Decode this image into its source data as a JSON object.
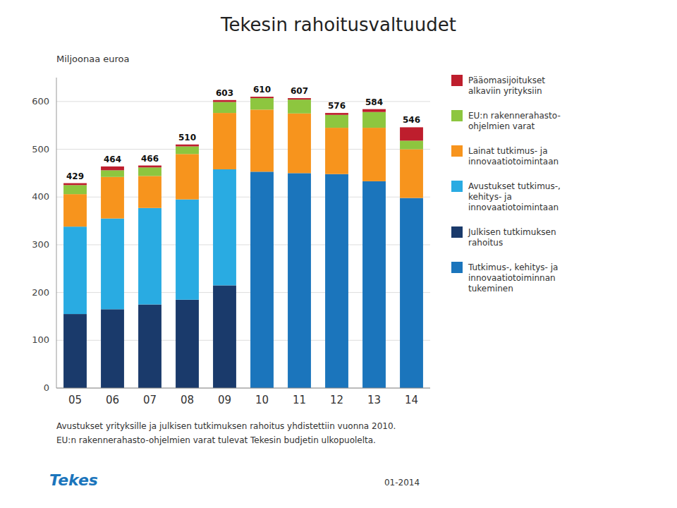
{
  "chart_data": {
    "type": "bar",
    "stacked": true,
    "title": "Tekesin rahoitusvaltuudet",
    "y_label": "Miljoonaa euroa",
    "categories": [
      "05",
      "06",
      "07",
      "08",
      "09",
      "10",
      "11",
      "12",
      "13",
      "14"
    ],
    "series": [
      {
        "name": "Tutkimus-, kehitys- ja\ninnovaatiotoiminnan\ntukeminen",
        "color": "#1B75BC",
        "values": [
          0,
          0,
          0,
          0,
          0,
          453,
          450,
          448,
          433,
          398
        ]
      },
      {
        "name": "Julkisen tutkimuksen\nrahoitus",
        "color": "#1A3A6B",
        "values": [
          155,
          165,
          175,
          185,
          215,
          0,
          0,
          0,
          0,
          0
        ]
      },
      {
        "name": "Avustukset tutkimus-,\nkehitys- ja\ninnovaatiotoimintaan",
        "color": "#29ABE2",
        "values": [
          183,
          190,
          202,
          210,
          243,
          0,
          0,
          0,
          0,
          0
        ]
      },
      {
        "name": "Lainat tutkimus- ja\ninnovaatiotoimintaan",
        "color": "#F7941D",
        "values": [
          68,
          87,
          67,
          95,
          118,
          130,
          125,
          97,
          112,
          102
        ]
      },
      {
        "name": "EU:n rakennerahasto-\nohjelmien varat",
        "color": "#8DC63F",
        "values": [
          19,
          14,
          18,
          16,
          23,
          24,
          29,
          27,
          33,
          18
        ]
      },
      {
        "name": "Pääomasijoitukset\nalkaviin yrityksiin",
        "color": "#BE1E2D",
        "values": [
          4,
          8,
          4,
          4,
          4,
          3,
          3,
          4,
          6,
          28
        ]
      }
    ],
    "totals": [
      429,
      464,
      466,
      510,
      603,
      610,
      607,
      576,
      584,
      546
    ],
    "ylim": [
      0,
      650
    ],
    "yticks": [
      0,
      100,
      200,
      300,
      400,
      500,
      600
    ],
    "grid": true,
    "legend": "right",
    "footnotes": [
      "Avustukset yrityksille ja julkisen tutkimuksen rahoitus yhdistettiin vuonna 2010.",
      "EU:n rakennerahasto-ohjelmien varat tulevat Tekesin budjetin ulkopuolelta."
    ],
    "date_label": "01-2014",
    "logo_text": "Tekes"
  }
}
